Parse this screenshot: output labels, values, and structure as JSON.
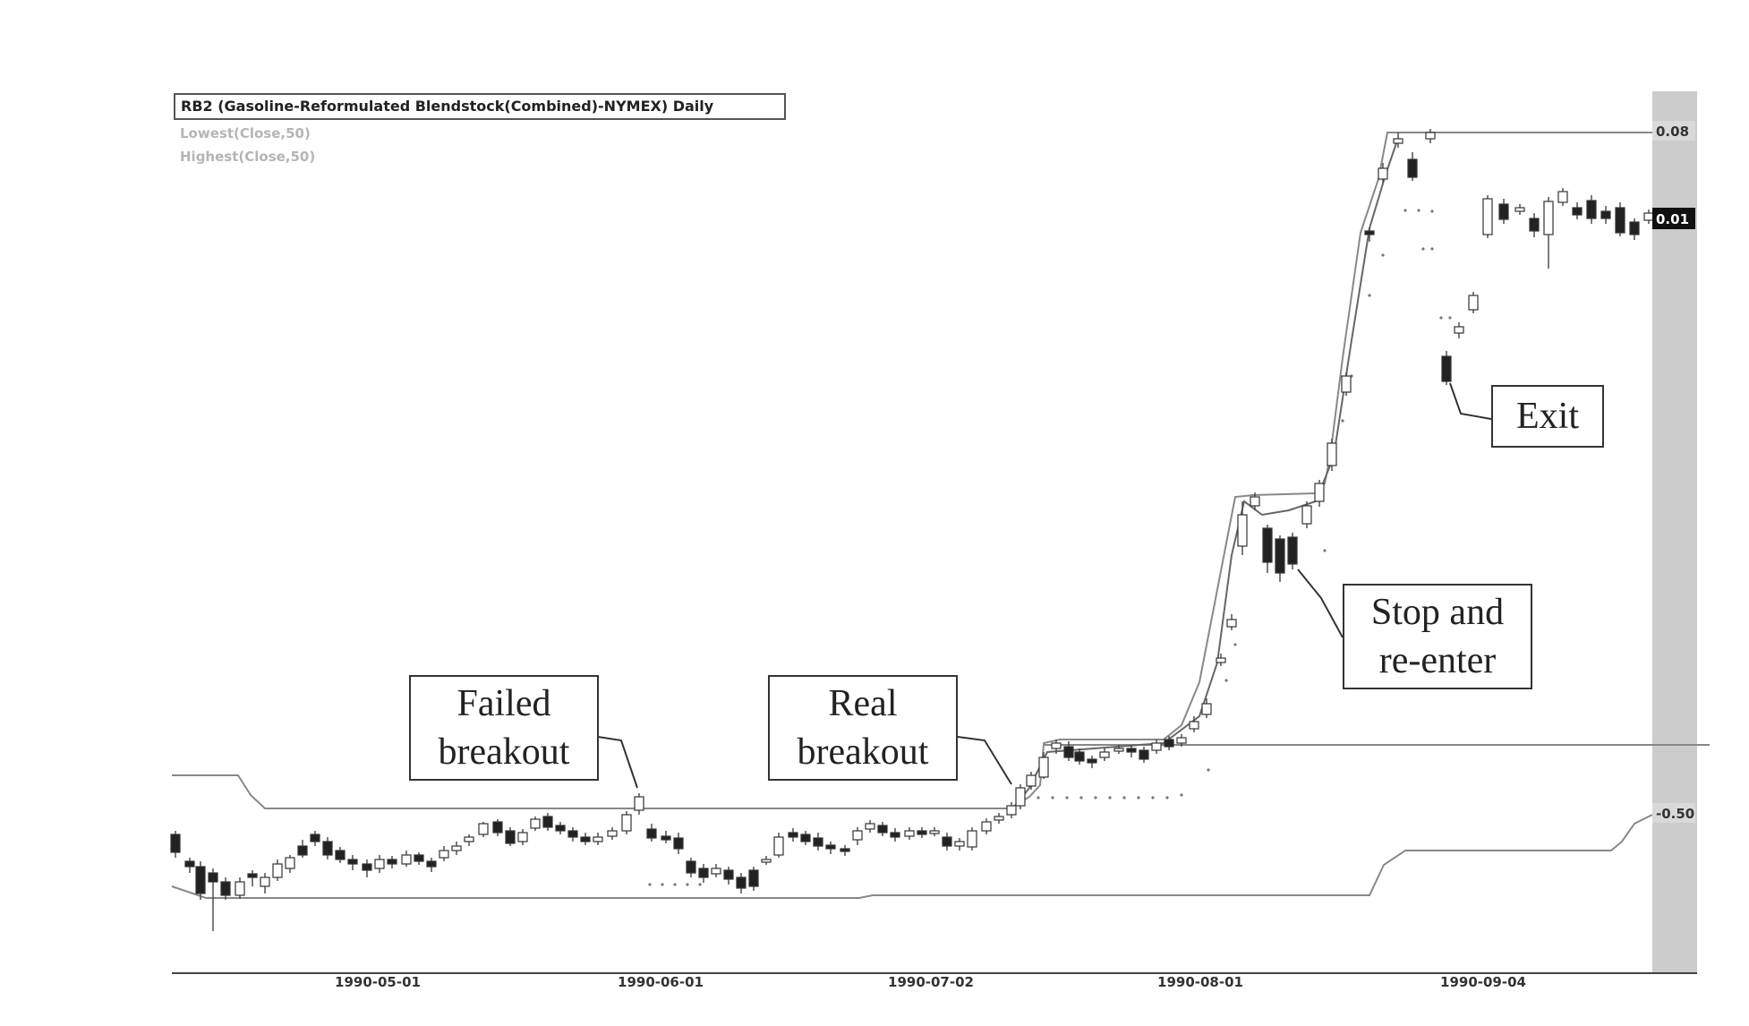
{
  "chart_data": {
    "type": "candlestick",
    "title": "RB2 (Gasoline-Reformulated Blendstock(Combined)-NYMEX) Daily",
    "indicators": [
      {
        "name": "Lowest(Close,50)",
        "color": "#b5b5b5"
      },
      {
        "name": "Highest(Close,50)",
        "color": "#b5b5b5"
      }
    ],
    "x_ticks": [
      "1990-05-01",
      "1990-06-01",
      "1990-07-02",
      "1990-08-01",
      "1990-09-04"
    ],
    "price_labels": [
      {
        "text": "0.08",
        "style": "light"
      },
      {
        "text": "0.01",
        "style": "dark"
      },
      {
        "text": "-0.50",
        "style": "light"
      }
    ],
    "annotations": [
      {
        "id": "failed",
        "lines": [
          "Failed",
          "breakout"
        ]
      },
      {
        "id": "real",
        "lines": [
          "Real",
          "breakout"
        ]
      },
      {
        "id": "stop",
        "lines": [
          "Stop and",
          "re-enter"
        ]
      },
      {
        "id": "exit",
        "lines": [
          "Exit"
        ]
      }
    ],
    "grid": false,
    "colors": {
      "up": "#ffffff",
      "down": "#222222",
      "line": "#555555",
      "axis_band": "#cccccc"
    }
  }
}
